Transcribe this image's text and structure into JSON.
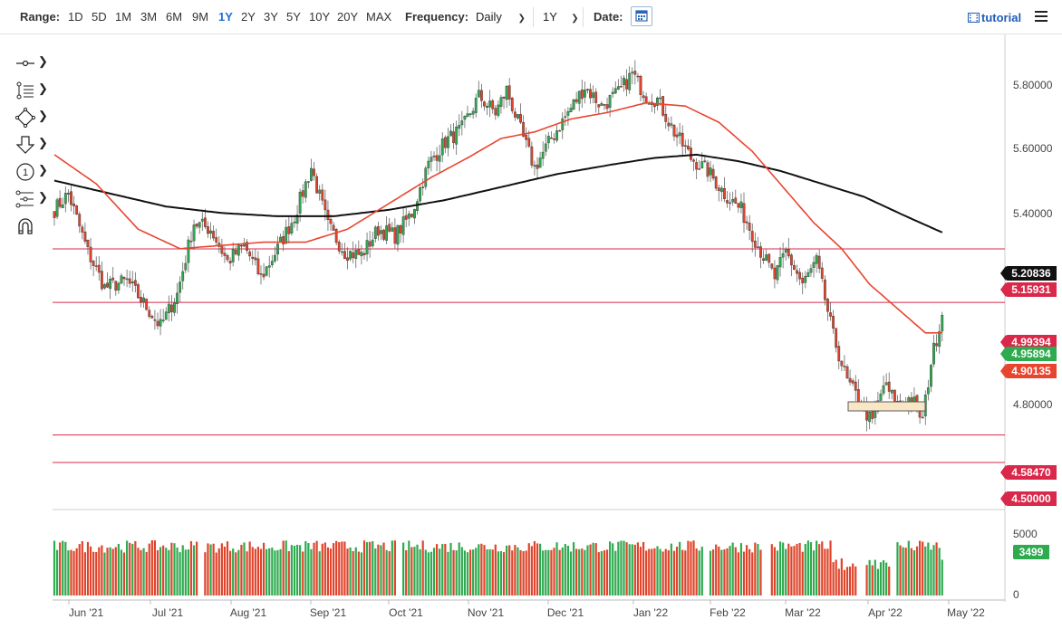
{
  "toolbar": {
    "range_label": "Range:",
    "ranges": [
      "1D",
      "5D",
      "1M",
      "3M",
      "6M",
      "9M",
      "1Y",
      "2Y",
      "3Y",
      "5Y",
      "10Y",
      "20Y",
      "MAX"
    ],
    "active_range": "1Y",
    "frequency_label": "Frequency:",
    "frequency_value": "Daily",
    "period_value": "1Y",
    "date_label": "Date:",
    "tutorial_label": "tutorial"
  },
  "tools": [
    "crosshair-tool",
    "trendline-tool",
    "shapes-tool",
    "annotation-tool",
    "event-tool",
    "indicator-tool",
    "magnet-tool"
  ],
  "colors": {
    "up": "#2eaa4f",
    "down": "#e0442b",
    "sma_short": "#e8452f",
    "sma_long": "#111111",
    "level": "#d9284a",
    "accent": "#1e6fd9"
  },
  "price_tags": [
    {
      "value": "5.20836",
      "color": "#111111"
    },
    {
      "value": "5.15931",
      "color": "#d9284a"
    },
    {
      "value": "4.99394",
      "color": "#d9284a"
    },
    {
      "value": "4.95894",
      "color": "#2eaa4f"
    },
    {
      "value": "4.90135",
      "color": "#e8452f"
    },
    {
      "value": "4.58470",
      "color": "#d9284a"
    },
    {
      "value": "4.50000",
      "color": "#d9284a"
    }
  ],
  "volume_tag": {
    "value": "3499",
    "color": "#2eaa4f"
  },
  "chart_data": {
    "type": "candlestick",
    "x_ticks": [
      "Jun '21",
      "Jul '21",
      "Aug '21",
      "Sep '21",
      "Oct '21",
      "Nov '21",
      "Dec '21",
      "Jan '22",
      "Feb '22",
      "Mar '22",
      "Apr '22",
      "May '22"
    ],
    "y_ticks": [
      "5.80000",
      "5.60000",
      "5.40000",
      "4.80000"
    ],
    "ylim": [
      4.5,
      5.85
    ],
    "horizontal_levels": [
      5.15931,
      4.99394,
      4.5847,
      4.5
    ],
    "close_anchors": [
      [
        0,
        5.28
      ],
      [
        5,
        5.33
      ],
      [
        12,
        5.15
      ],
      [
        18,
        5.04
      ],
      [
        26,
        5.06
      ],
      [
        33,
        4.98
      ],
      [
        38,
        4.92
      ],
      [
        44,
        5.02
      ],
      [
        50,
        5.24
      ],
      [
        56,
        5.22
      ],
      [
        62,
        5.12
      ],
      [
        68,
        5.17
      ],
      [
        74,
        5.07
      ],
      [
        80,
        5.16
      ],
      [
        86,
        5.26
      ],
      [
        92,
        5.41
      ],
      [
        98,
        5.23
      ],
      [
        104,
        5.15
      ],
      [
        110,
        5.14
      ],
      [
        116,
        5.22
      ],
      [
        122,
        5.2
      ],
      [
        128,
        5.27
      ],
      [
        134,
        5.42
      ],
      [
        140,
        5.49
      ],
      [
        146,
        5.53
      ],
      [
        152,
        5.63
      ],
      [
        158,
        5.58
      ],
      [
        162,
        5.65
      ],
      [
        168,
        5.5
      ],
      [
        172,
        5.41
      ],
      [
        178,
        5.5
      ],
      [
        184,
        5.58
      ],
      [
        190,
        5.66
      ],
      [
        196,
        5.6
      ],
      [
        202,
        5.64
      ],
      [
        207,
        5.7
      ],
      [
        212,
        5.63
      ],
      [
        216,
        5.62
      ],
      [
        222,
        5.52
      ],
      [
        228,
        5.44
      ],
      [
        234,
        5.4
      ],
      [
        240,
        5.33
      ],
      [
        246,
        5.28
      ],
      [
        252,
        5.17
      ],
      [
        258,
        5.07
      ],
      [
        262,
        5.15
      ],
      [
        268,
        5.05
      ],
      [
        273,
        5.12
      ],
      [
        279,
        4.89
      ],
      [
        284,
        4.75
      ],
      [
        289,
        4.68
      ],
      [
        293,
        4.62
      ],
      [
        297,
        4.74
      ],
      [
        302,
        4.68
      ],
      [
        307,
        4.7
      ],
      [
        311,
        4.63
      ],
      [
        314,
        4.81
      ],
      [
        318,
        4.96
      ]
    ],
    "sma_short_anchors": [
      [
        0,
        5.45
      ],
      [
        15,
        5.36
      ],
      [
        30,
        5.22
      ],
      [
        45,
        5.16
      ],
      [
        60,
        5.17
      ],
      [
        75,
        5.18
      ],
      [
        90,
        5.18
      ],
      [
        105,
        5.22
      ],
      [
        120,
        5.3
      ],
      [
        135,
        5.38
      ],
      [
        148,
        5.44
      ],
      [
        160,
        5.5
      ],
      [
        172,
        5.52
      ],
      [
        185,
        5.56
      ],
      [
        198,
        5.58
      ],
      [
        212,
        5.61
      ],
      [
        226,
        5.6
      ],
      [
        238,
        5.55
      ],
      [
        250,
        5.46
      ],
      [
        262,
        5.34
      ],
      [
        272,
        5.24
      ],
      [
        282,
        5.16
      ],
      [
        292,
        5.05
      ],
      [
        304,
        4.96
      ],
      [
        312,
        4.9
      ],
      [
        318,
        4.9
      ]
    ],
    "sma_long_anchors": [
      [
        0,
        5.37
      ],
      [
        20,
        5.33
      ],
      [
        40,
        5.29
      ],
      [
        60,
        5.27
      ],
      [
        80,
        5.26
      ],
      [
        100,
        5.26
      ],
      [
        120,
        5.28
      ],
      [
        140,
        5.31
      ],
      [
        160,
        5.35
      ],
      [
        180,
        5.39
      ],
      [
        200,
        5.42
      ],
      [
        215,
        5.44
      ],
      [
        230,
        5.45
      ],
      [
        245,
        5.43
      ],
      [
        260,
        5.4
      ],
      [
        275,
        5.36
      ],
      [
        290,
        5.32
      ],
      [
        305,
        5.26
      ],
      [
        318,
        5.21
      ]
    ],
    "volume_ylim": [
      0,
      6500
    ],
    "volume_ticks": [
      "5000",
      "0"
    ],
    "last_volume": 3499,
    "volume_gaps": [
      [
        52,
        53
      ],
      [
        123,
        124
      ],
      [
        233,
        234
      ],
      [
        254,
        256
      ],
      [
        288,
        290
      ],
      [
        300,
        301
      ]
    ]
  }
}
